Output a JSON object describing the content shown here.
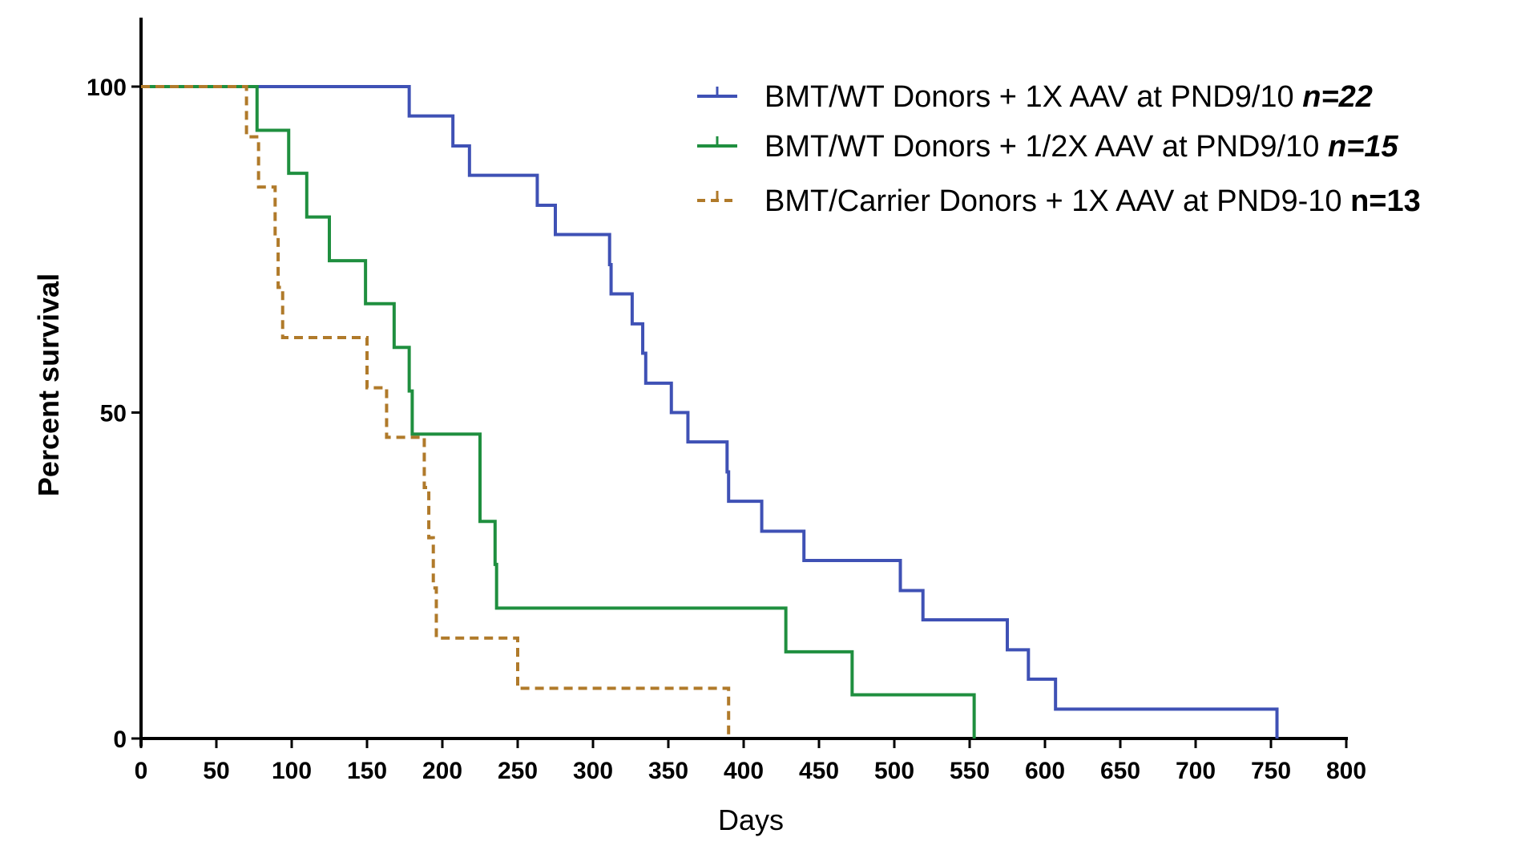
{
  "chart_data": {
    "type": "line",
    "subtype": "kaplan-meier",
    "title": "",
    "xlabel": "Days",
    "ylabel": "Percent survival",
    "xlim": [
      0,
      800
    ],
    "ylim": [
      0,
      100
    ],
    "xticks": [
      0,
      50,
      100,
      150,
      200,
      250,
      300,
      350,
      400,
      450,
      500,
      550,
      600,
      650,
      700,
      750,
      800
    ],
    "yticks": [
      0,
      50,
      100
    ],
    "legend_position": "top-right",
    "series": [
      {
        "name": "BMT/WT Donors + 1X AAV at PND9/10",
        "n_label": "n=22",
        "color": "#3f51b5",
        "dash": "solid",
        "n_italic": true,
        "steps": [
          [
            0,
            100
          ],
          [
            178,
            95.5
          ],
          [
            207,
            90.9
          ],
          [
            218,
            86.4
          ],
          [
            263,
            81.8
          ],
          [
            275,
            77.3
          ],
          [
            311,
            72.7
          ],
          [
            312,
            68.2
          ],
          [
            326,
            63.6
          ],
          [
            333,
            59.1
          ],
          [
            335,
            54.5
          ],
          [
            352,
            50.0
          ],
          [
            363,
            45.5
          ],
          [
            389,
            40.9
          ],
          [
            390,
            36.4
          ],
          [
            412,
            31.8
          ],
          [
            440,
            27.3
          ],
          [
            504,
            22.7
          ],
          [
            519,
            18.2
          ],
          [
            575,
            13.6
          ],
          [
            589,
            9.1
          ],
          [
            607,
            4.5
          ],
          [
            754,
            0
          ]
        ]
      },
      {
        "name": "BMT/WT Donors + 1/2X AAV at PND9/10",
        "n_label": "n=15",
        "color": "#1f8f3f",
        "dash": "solid",
        "n_italic": true,
        "steps": [
          [
            0,
            100
          ],
          [
            77,
            93.3
          ],
          [
            98,
            86.7
          ],
          [
            110,
            80.0
          ],
          [
            125,
            73.3
          ],
          [
            149,
            66.7
          ],
          [
            168,
            60.0
          ],
          [
            178,
            53.3
          ],
          [
            180,
            46.7
          ],
          [
            225,
            33.3
          ],
          [
            235,
            26.7
          ],
          [
            236,
            20.0
          ],
          [
            428,
            13.3
          ],
          [
            472,
            6.7
          ],
          [
            553,
            0
          ]
        ]
      },
      {
        "name": "BMT/Carrier Donors + 1X AAV at PND9-10",
        "n_label": "n=13",
        "color": "#b07a2a",
        "dash": "dashed",
        "n_italic": false,
        "steps": [
          [
            0,
            100
          ],
          [
            70,
            92.3
          ],
          [
            78,
            84.6
          ],
          [
            89,
            76.9
          ],
          [
            91,
            69.2
          ],
          [
            94,
            61.5
          ],
          [
            150,
            53.8
          ],
          [
            163,
            46.2
          ],
          [
            188,
            38.5
          ],
          [
            191,
            30.8
          ],
          [
            194,
            23.1
          ],
          [
            196,
            15.4
          ],
          [
            250,
            7.7
          ],
          [
            390,
            0
          ]
        ]
      }
    ]
  }
}
